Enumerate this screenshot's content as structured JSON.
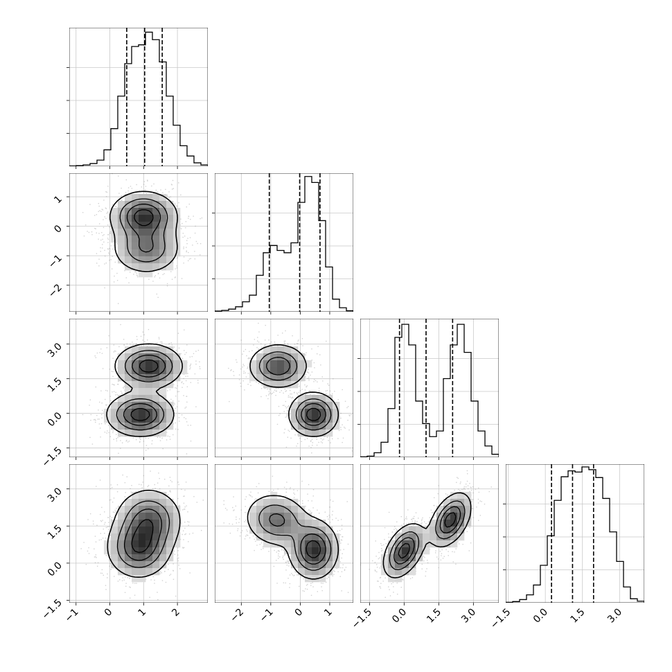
{
  "chart_data": {
    "type": "corner",
    "n_params": 4,
    "colors": {
      "line": "#000000",
      "grid": "#c8c8c8",
      "scatter": "#9a9a9a"
    },
    "ranges": [
      [
        -1.2,
        2.9
      ],
      [
        -2.9,
        1.8
      ],
      [
        -1.9,
        4.1
      ],
      [
        -1.6,
        4.0
      ]
    ],
    "ticks": [
      {
        "values": [
          -1,
          0,
          1,
          2
        ],
        "labels": [
          "−1",
          "0",
          "1",
          "2"
        ]
      },
      {
        "values": [
          -2,
          -1,
          0,
          1
        ],
        "labels": [
          "−2",
          "−1",
          "0",
          "1"
        ]
      },
      {
        "values": [
          -1.5,
          0.0,
          1.5,
          3.0
        ],
        "labels": [
          "−1.5",
          "0.0",
          "1.5",
          "3.0"
        ]
      },
      {
        "values": [
          -1.5,
          0.0,
          1.5,
          3.0
        ],
        "labels": [
          "−1.5",
          "0.0",
          "1.5",
          "3.0"
        ]
      }
    ],
    "histograms": [
      {
        "param": 0,
        "counts": [
          1,
          2,
          4,
          8,
          18,
          48,
          110,
          205,
          300,
          350,
          355,
          392,
          370,
          305,
          205,
          120,
          60,
          30,
          10,
          4
        ],
        "quantiles": [
          0.5,
          1.03,
          1.55
        ],
        "ymax": 405
      },
      {
        "param": 1,
        "counts": [
          2,
          4,
          8,
          15,
          30,
          50,
          110,
          178,
          200,
          185,
          178,
          208,
          330,
          408,
          390,
          275,
          135,
          38,
          12,
          3
        ],
        "quantiles": [
          -1.05,
          -0.02,
          0.67
        ],
        "ymax": 418
      },
      {
        "param": 2,
        "counts": [
          1,
          3,
          12,
          40,
          130,
          320,
          355,
          300,
          150,
          90,
          55,
          70,
          210,
          300,
          355,
          280,
          150,
          70,
          30,
          8
        ],
        "quantiles": [
          -0.2,
          0.95,
          2.1
        ],
        "ymax": 370
      },
      {
        "param": 3,
        "counts": [
          1,
          3,
          8,
          20,
          45,
          95,
          170,
          260,
          320,
          335,
          332,
          345,
          338,
          318,
          265,
          180,
          105,
          40,
          10,
          4
        ],
        "quantiles": [
          0.25,
          1.1,
          1.95
        ],
        "ymax": 352
      }
    ],
    "pairs": [
      {
        "row": 1,
        "col": 0,
        "components": [
          {
            "mx": 1.0,
            "my": 0.35,
            "sx": 0.5,
            "sy": 0.42,
            "rho": 0.0,
            "w": 0.58
          },
          {
            "mx": 1.08,
            "my": -0.75,
            "sx": 0.52,
            "sy": 0.45,
            "rho": 0.0,
            "w": 0.42
          }
        ]
      },
      {
        "row": 2,
        "col": 0,
        "components": [
          {
            "mx": 1.15,
            "my": 2.05,
            "sx": 0.5,
            "sy": 0.48,
            "rho": 0.0,
            "w": 0.5
          },
          {
            "mx": 0.9,
            "my": -0.05,
            "sx": 0.5,
            "sy": 0.48,
            "rho": 0.0,
            "w": 0.5
          }
        ]
      },
      {
        "row": 3,
        "col": 0,
        "components": [
          {
            "mx": 1.15,
            "my": 1.75,
            "sx": 0.5,
            "sy": 0.65,
            "rho": 0.0,
            "w": 0.5
          },
          {
            "mx": 0.85,
            "my": 0.6,
            "sx": 0.48,
            "sy": 0.62,
            "rho": 0.0,
            "w": 0.5
          }
        ]
      },
      {
        "row": 2,
        "col": 1,
        "components": [
          {
            "mx": -0.75,
            "my": 2.05,
            "sx": 0.5,
            "sy": 0.48,
            "rho": 0.0,
            "w": 0.5
          },
          {
            "mx": 0.45,
            "my": -0.05,
            "sx": 0.42,
            "sy": 0.48,
            "rho": 0.0,
            "w": 0.5
          }
        ]
      },
      {
        "row": 3,
        "col": 1,
        "components": [
          {
            "mx": -0.8,
            "my": 1.75,
            "sx": 0.55,
            "sy": 0.55,
            "rho": -0.1,
            "w": 0.45
          },
          {
            "mx": 0.45,
            "my": 0.55,
            "sx": 0.42,
            "sy": 0.6,
            "rho": 0.0,
            "w": 0.55
          }
        ]
      },
      {
        "row": 3,
        "col": 2,
        "components": [
          {
            "mx": 0.0,
            "my": 0.5,
            "sx": 0.45,
            "sy": 0.55,
            "rho": 0.45,
            "w": 0.5
          },
          {
            "mx": 2.0,
            "my": 1.75,
            "sx": 0.45,
            "sy": 0.55,
            "rho": 0.45,
            "w": 0.5
          }
        ]
      }
    ]
  }
}
